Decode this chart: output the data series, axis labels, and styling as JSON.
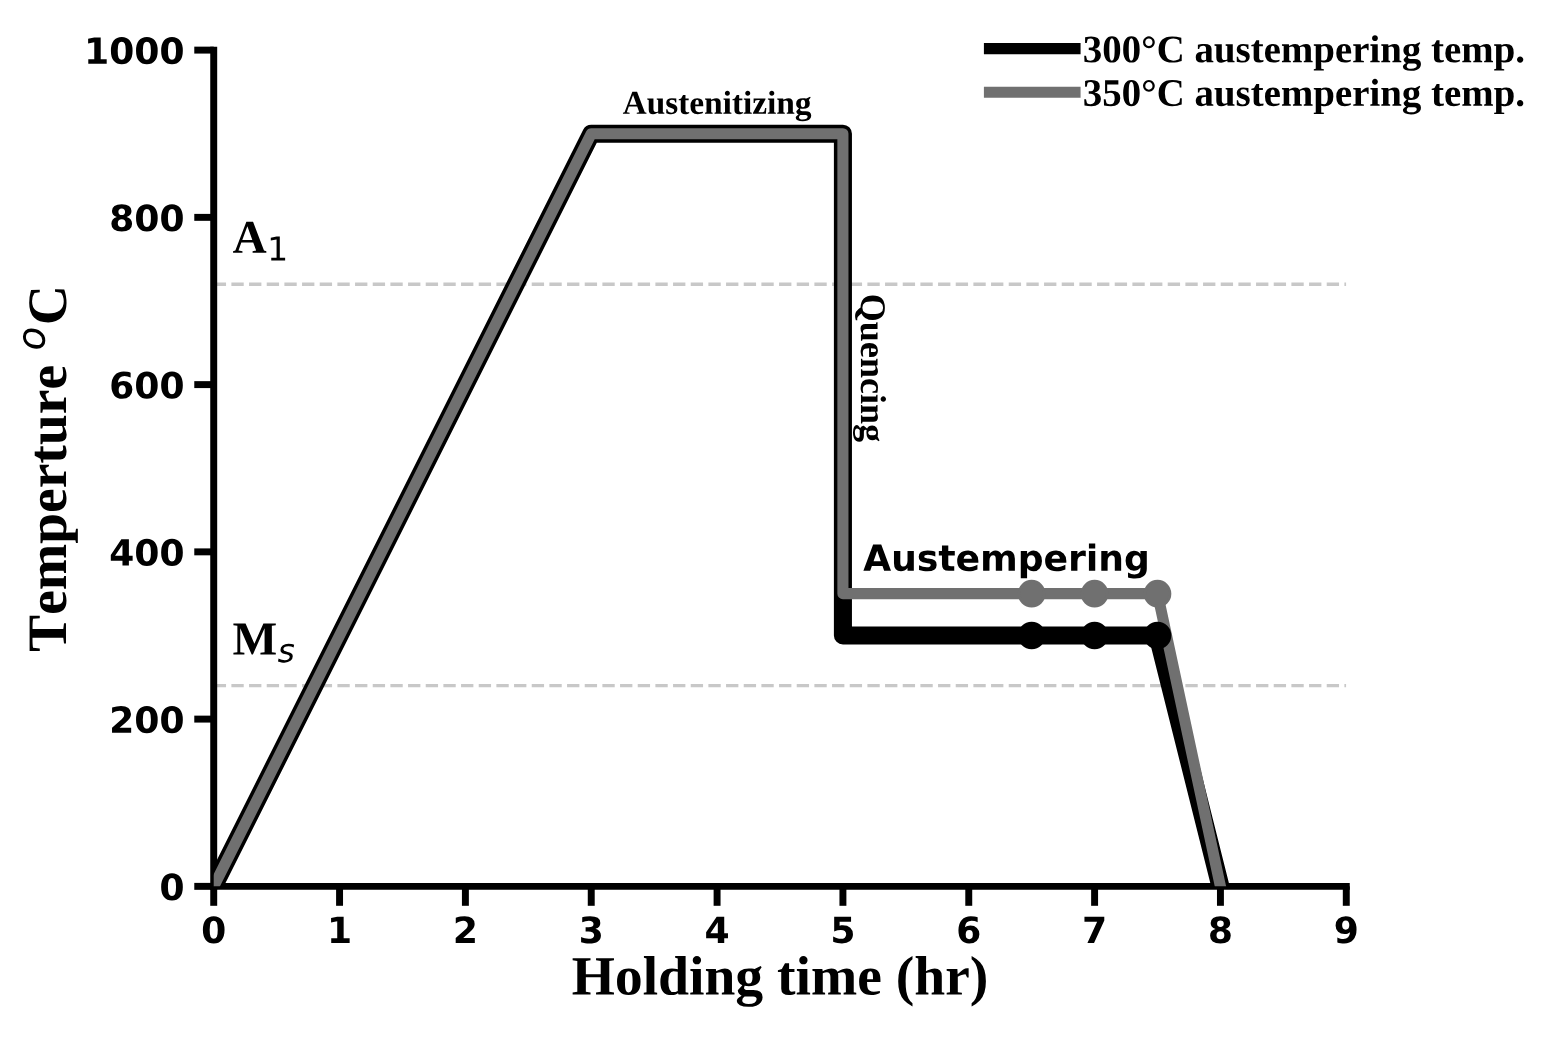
{
  "chart_data": {
    "type": "line",
    "xlabel": "Holding time (hr)",
    "ylabel": "Temperture $^{o}$C",
    "xlim": [
      0,
      9
    ],
    "ylim": [
      0,
      1000
    ],
    "xticks": [
      0,
      1,
      2,
      3,
      4,
      5,
      6,
      7,
      8,
      9
    ],
    "yticks": [
      0,
      200,
      400,
      600,
      800,
      1000
    ],
    "grid": false,
    "legend": "top right",
    "marker": "none",
    "line_style": "solid",
    "series": [
      {
        "name": "300°C austempering temp.",
        "color": "#000000",
        "x": [
          0,
          3,
          5,
          5,
          6.5,
          7,
          7.5,
          8
        ],
        "values": [
          0,
          900,
          900,
          300,
          300,
          300,
          300,
          0
        ]
      },
      {
        "name": "350°C austempering temp.",
        "color": "#707070",
        "x": [
          0,
          3,
          5,
          5,
          6.5,
          7,
          7.5,
          8
        ],
        "values": [
          0,
          900,
          900,
          350,
          350,
          350,
          350,
          0
        ]
      },
      {
        "type": "scatter",
        "marker": "circle",
        "color": "#000000",
        "x": [
          6.5,
          7,
          7.5
        ],
        "values": [
          300,
          300,
          300
        ]
      },
      {
        "type": "scatter",
        "marker": "circle",
        "color": "#707070",
        "x": [
          6.5,
          7,
          7.5
        ],
        "values": [
          350,
          350,
          350
        ]
      }
    ],
    "ref_lines": [
      {
        "axis": "y",
        "value": 720,
        "label": "A$_{1}$",
        "color": "#c8c8c8",
        "line_style": "dashed"
      },
      {
        "axis": "y",
        "value": 240,
        "label": "M$_{s}$",
        "color": "#c8c8c8",
        "line_style": "dashed"
      }
    ],
    "annotations": [
      {
        "text": "Austenitizing",
        "x": 4,
        "y": 900
      },
      {
        "text": "Quencing",
        "x": 5,
        "y": 620
      },
      {
        "text": "Austempering",
        "x": 6.3,
        "y": 350
      }
    ]
  }
}
